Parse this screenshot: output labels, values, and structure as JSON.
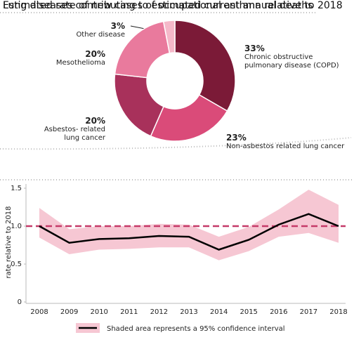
{
  "chart_data": [
    {
      "type": "pie",
      "title": "Lung diseases contributing to estimated current annual deaths",
      "categories": [
        "Chronic obstructive pulmonary disease (COPD)",
        "Non-asbestos related lung cancer",
        "Asbestos- related lung cancer",
        "Mesothelioma",
        "Other disease"
      ],
      "values": [
        33,
        23,
        20,
        20,
        3
      ],
      "value_labels": [
        "33%",
        "23%",
        "20%",
        "20%",
        "3%"
      ],
      "colors": [
        "#7b1a37",
        "#da4b79",
        "#a8315b",
        "#e97a9d",
        "#f5b8c9"
      ]
    },
    {
      "type": "line",
      "title": "Estimated rate of new cases of occupational asthma relative to 2018",
      "y_label": "rate relative to 2018",
      "categories": [
        "2008",
        "2009",
        "2010",
        "2011",
        "2012",
        "2013",
        "2014",
        "2015",
        "2016",
        "2017",
        "2018"
      ],
      "series": [
        {
          "name": "Shaded area represents a 95% confidence interval",
          "color": "#000000",
          "band_color": "#f6c7d3",
          "values": [
            1.0,
            0.78,
            0.83,
            0.84,
            0.87,
            0.86,
            0.69,
            0.82,
            1.02,
            1.16,
            1.0
          ],
          "lower": [
            0.85,
            0.63,
            0.69,
            0.7,
            0.72,
            0.72,
            0.55,
            0.67,
            0.86,
            0.91,
            0.78
          ],
          "upper": [
            1.24,
            0.96,
            1.0,
            1.0,
            1.03,
            1.02,
            0.86,
            0.99,
            1.22,
            1.48,
            1.28
          ]
        }
      ],
      "reference_line": {
        "value": 1,
        "color": "#c53a69"
      },
      "ylim": [
        0,
        1.5
      ],
      "yticks": [
        0,
        0.5,
        {
          "value": 1,
          "label": "1.0"
        },
        1.5
      ]
    }
  ]
}
